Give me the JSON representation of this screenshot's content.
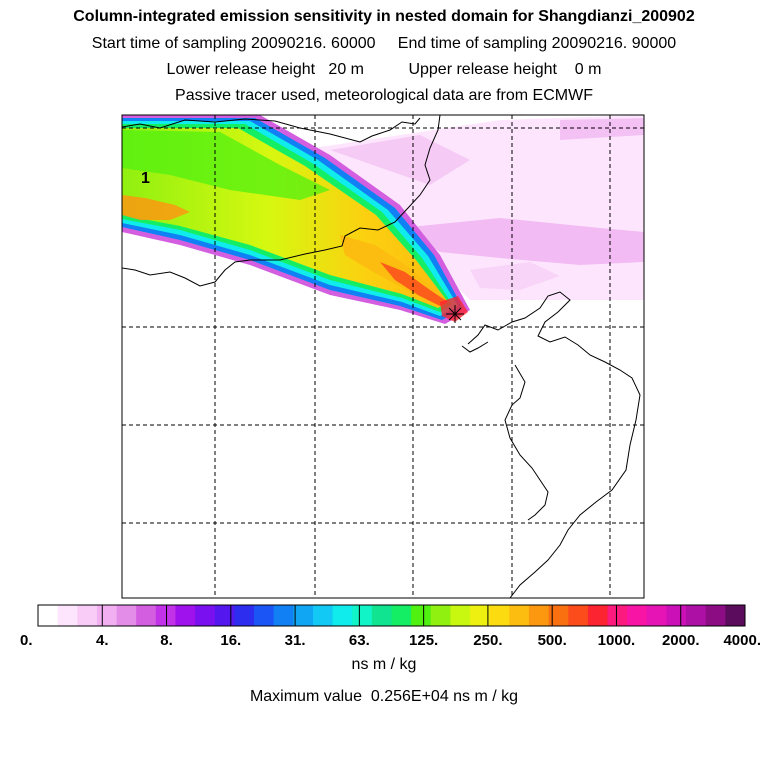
{
  "title": "Column-integrated emission sensitivity in nested domain for Shangdianzi_200902",
  "line2": "Start time of sampling 20090216. 60000     End time of sampling 20090216. 90000",
  "line3": "Lower release height   20 m          Upper release height    0 m",
  "line4": "Passive tracer used, meteorological data are from ECMWF",
  "map_label": "1",
  "chart_data": {
    "type": "heatmap",
    "title": "Column-integrated emission sensitivity in nested domain for Shangdianzi_200902",
    "colorbar_label": "ns m / kg",
    "colorbar_ticks": [
      "0.",
      "4.",
      "8.",
      "16.",
      "31.",
      "63.",
      "125.",
      "250.",
      "500.",
      "1000.",
      "2000.",
      "4000."
    ],
    "colorbar_colors": [
      "#ffffff",
      "#fde6fd",
      "#f9ccf8",
      "#f2b0f2",
      "#e38ce8",
      "#d35ee0",
      "#c132e8",
      "#9f12ee",
      "#7a10f0",
      "#5418ee",
      "#2d2df0",
      "#1c55f6",
      "#1080f4",
      "#10a6f4",
      "#12c8f4",
      "#10ecec",
      "#10f4c8",
      "#10e490",
      "#14ee64",
      "#50f010",
      "#90f010",
      "#c8f810",
      "#eef010",
      "#fcdc10",
      "#fcbc10",
      "#fc9810",
      "#f87010",
      "#fc4c1c",
      "#fc2430",
      "#fc1a7e",
      "#f814a4",
      "#e614b4",
      "#cc10b8",
      "#ac10a4",
      "#8c0c84",
      "#5c0c5c"
    ],
    "max_value": 2560,
    "max_text": "Maximum value  0.256E+04 ns m / kg",
    "unit": "ns m / kg",
    "receptor": "Shangdianzi",
    "sampling_start": "20090216. 60000",
    "sampling_end": "20090216. 90000",
    "lower_release_height_m": 20,
    "upper_release_height_m": 0
  }
}
